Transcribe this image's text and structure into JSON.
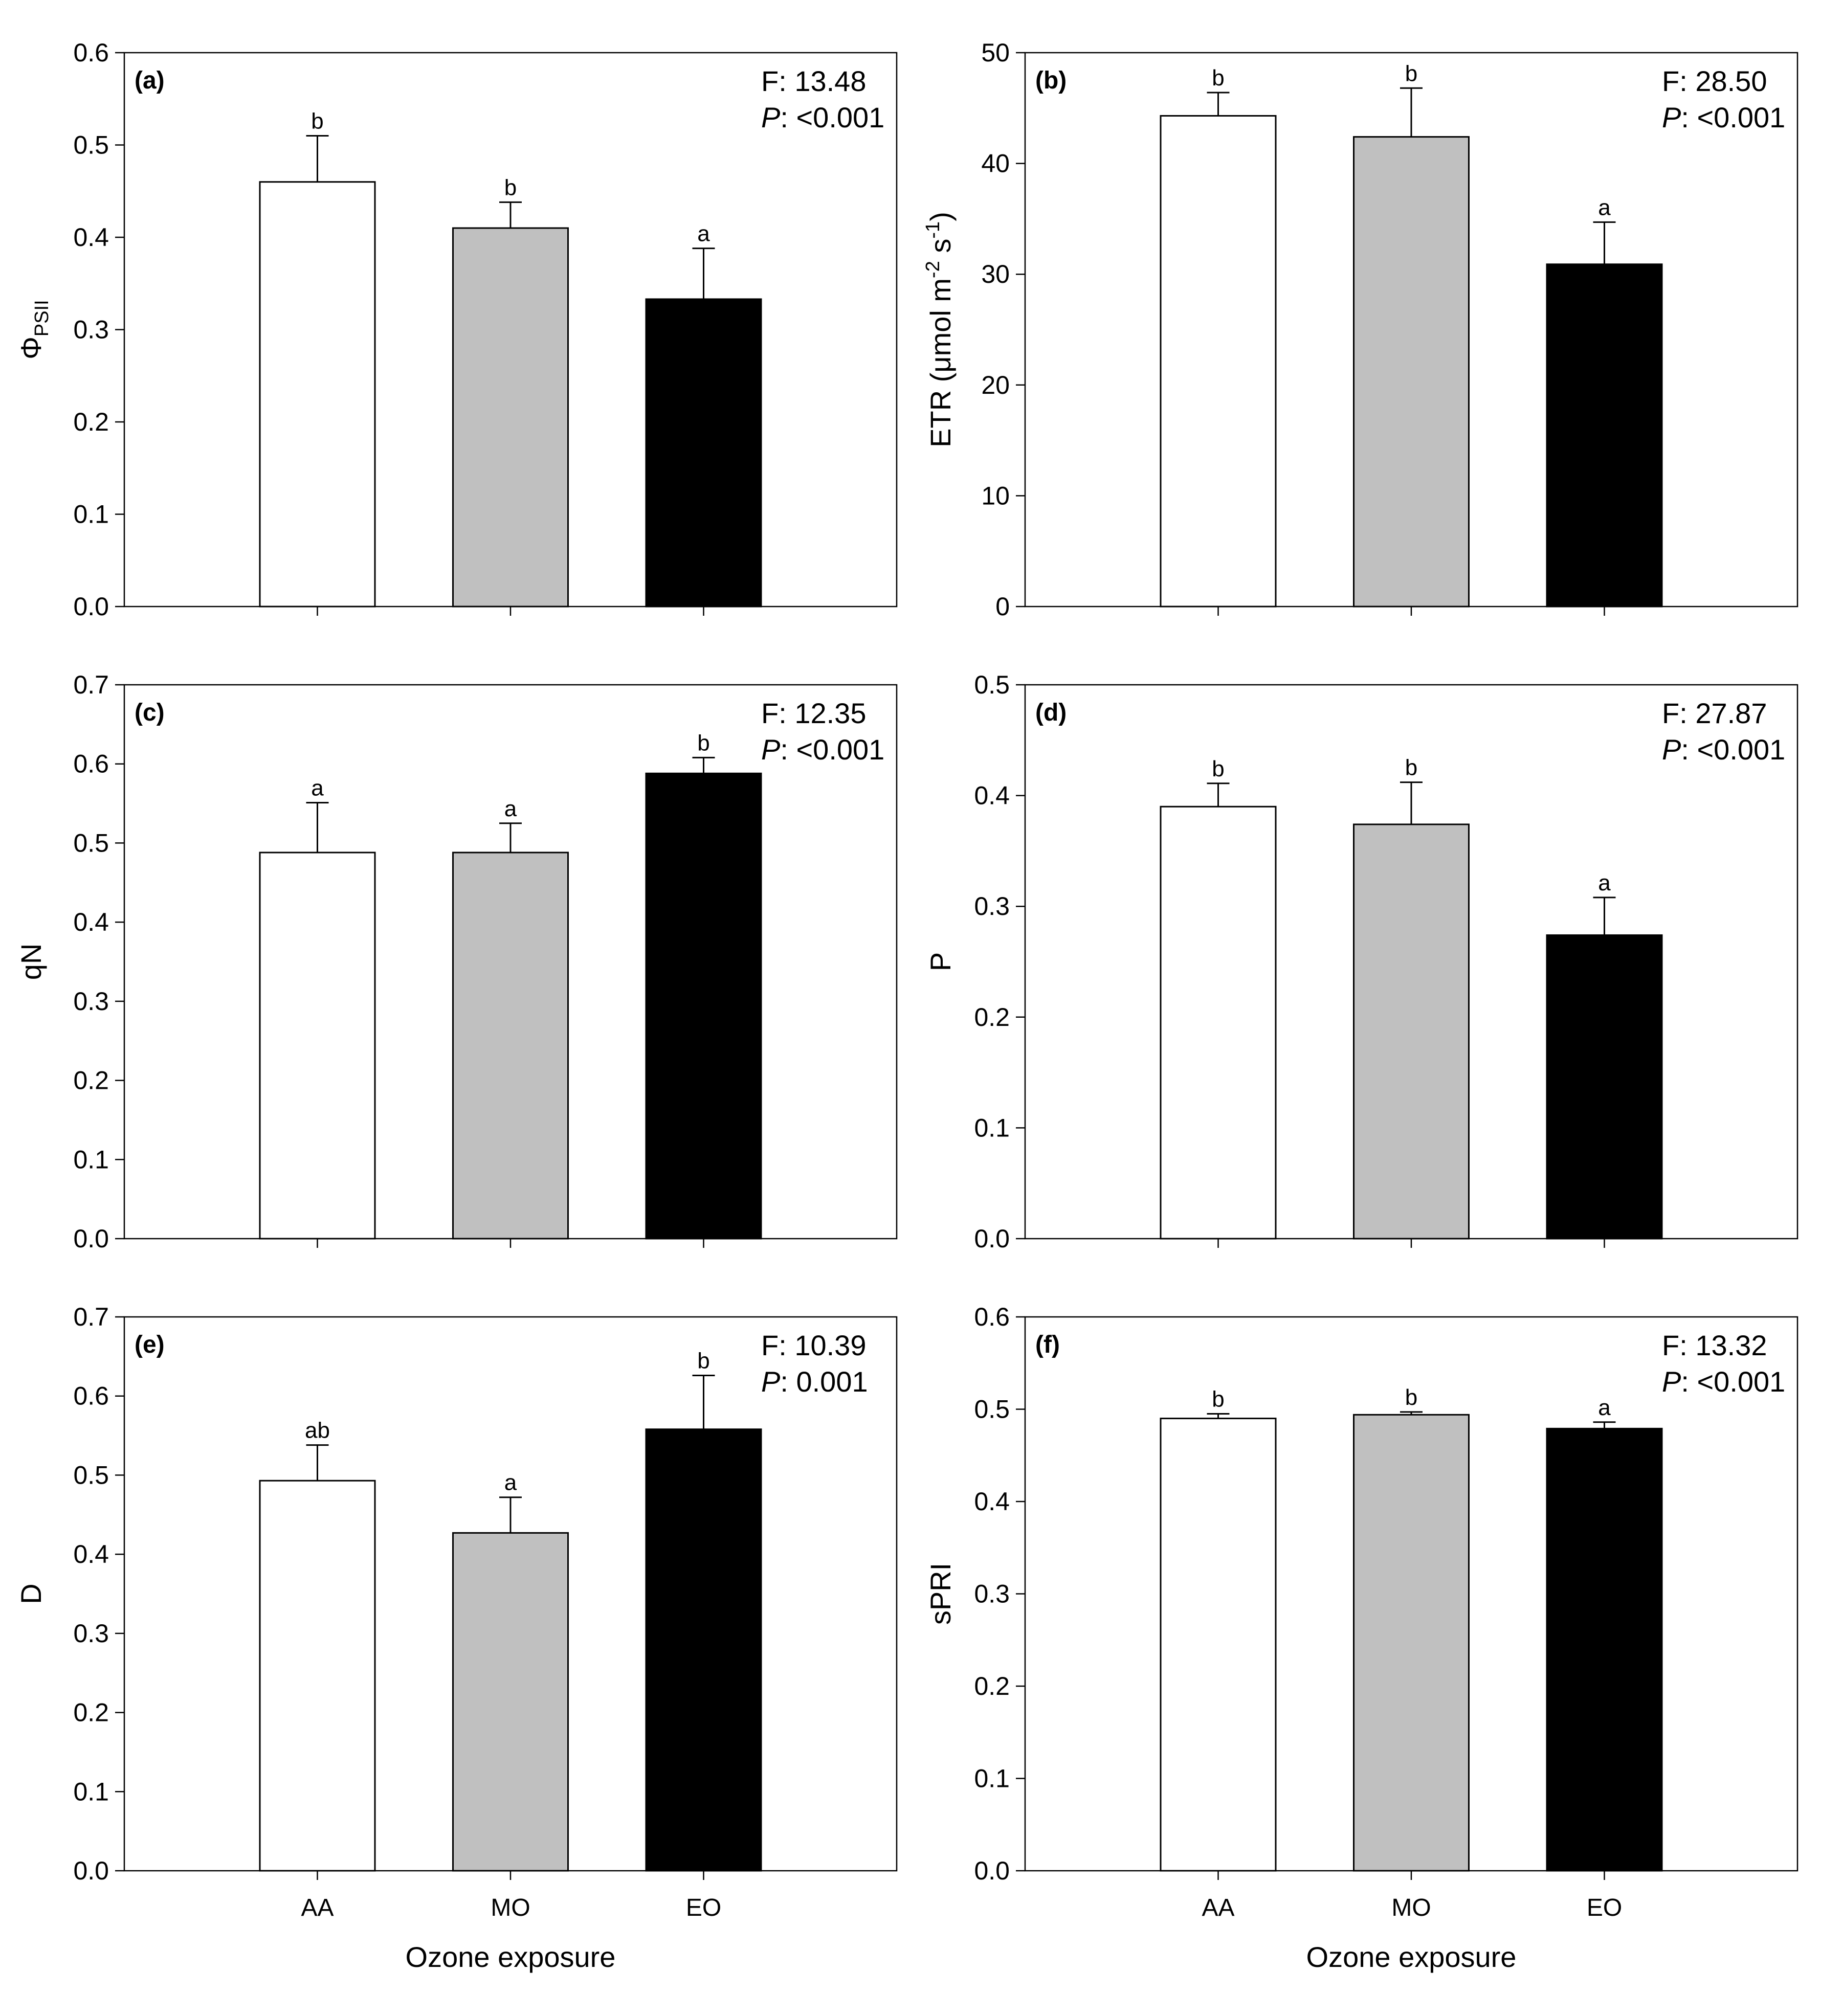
{
  "x_axis": {
    "categories": [
      "AA",
      "MO",
      "EO"
    ],
    "label": "Ozone exposure"
  },
  "colors": {
    "bars": [
      "#ffffff",
      "#c0c0c0",
      "#000000"
    ],
    "axis": "#000000",
    "background": "#ffffff"
  },
  "chart_data": [
    {
      "panel_label": "(a)",
      "type": "bar",
      "values": [
        0.46,
        0.41,
        0.333
      ],
      "errors": [
        0.05,
        0.028,
        0.055
      ],
      "letters": [
        "b",
        "b",
        "a"
      ],
      "ylabel_parts": [
        {
          "text": "Φ"
        },
        {
          "text": "PSII",
          "sub": true
        }
      ],
      "ylim": [
        0,
        0.6
      ],
      "yticks": [
        0,
        0.1,
        0.2,
        0.3,
        0.4,
        0.5,
        0.6
      ],
      "ytick_labels": [
        "0.0",
        "0.1",
        "0.2",
        "0.3",
        "0.4",
        "0.5",
        "0.6"
      ],
      "stat_f": "F: 13.48",
      "stat_p_symbol": "P",
      "stat_p_value": ": <0.001",
      "show_x_labels": false
    },
    {
      "panel_label": "(b)",
      "type": "bar",
      "values": [
        44.3,
        42.4,
        30.9
      ],
      "errors": [
        2.1,
        4.4,
        3.8
      ],
      "letters": [
        "b",
        "b",
        "a"
      ],
      "ylabel_parts": [
        {
          "text": "ETR (μmol m"
        },
        {
          "text": "-2",
          "sup": true
        },
        {
          "text": " s"
        },
        {
          "text": "-1",
          "sup": true
        },
        {
          "text": ")"
        }
      ],
      "ylim": [
        0,
        50
      ],
      "yticks": [
        0,
        10,
        20,
        30,
        40,
        50
      ],
      "ytick_labels": [
        "0",
        "10",
        "20",
        "30",
        "40",
        "50"
      ],
      "stat_f": "F: 28.50",
      "stat_p_symbol": "P",
      "stat_p_value": ": <0.001",
      "show_x_labels": false
    },
    {
      "panel_label": "(c)",
      "type": "bar",
      "values": [
        0.488,
        0.488,
        0.588
      ],
      "errors": [
        0.063,
        0.037,
        0.02
      ],
      "letters": [
        "a",
        "a",
        "b"
      ],
      "ylabel_parts": [
        {
          "text": "qN"
        }
      ],
      "ylim": [
        0,
        0.7
      ],
      "yticks": [
        0,
        0.1,
        0.2,
        0.3,
        0.4,
        0.5,
        0.6,
        0.7
      ],
      "ytick_labels": [
        "0.0",
        "0.1",
        "0.2",
        "0.3",
        "0.4",
        "0.5",
        "0.6",
        "0.7"
      ],
      "stat_f": "F: 12.35",
      "stat_p_symbol": "P",
      "stat_p_value": ": <0.001",
      "show_x_labels": false
    },
    {
      "panel_label": "(d)",
      "type": "bar",
      "values": [
        0.39,
        0.374,
        0.274
      ],
      "errors": [
        0.021,
        0.038,
        0.034
      ],
      "letters": [
        "b",
        "b",
        "a"
      ],
      "ylabel_parts": [
        {
          "text": "P"
        }
      ],
      "ylim": [
        0,
        0.5
      ],
      "yticks": [
        0,
        0.1,
        0.2,
        0.3,
        0.4,
        0.5
      ],
      "ytick_labels": [
        "0.0",
        "0.1",
        "0.2",
        "0.3",
        "0.4",
        "0.5"
      ],
      "stat_f": "F: 27.87",
      "stat_p_symbol": "P",
      "stat_p_value": ": <0.001",
      "show_x_labels": false
    },
    {
      "panel_label": "(e)",
      "type": "bar",
      "values": [
        0.493,
        0.427,
        0.558
      ],
      "errors": [
        0.045,
        0.045,
        0.068
      ],
      "letters": [
        "ab",
        "a",
        "b"
      ],
      "ylabel_parts": [
        {
          "text": "D"
        }
      ],
      "ylim": [
        0,
        0.7
      ],
      "yticks": [
        0,
        0.1,
        0.2,
        0.3,
        0.4,
        0.5,
        0.6,
        0.7
      ],
      "ytick_labels": [
        "0.0",
        "0.1",
        "0.2",
        "0.3",
        "0.4",
        "0.5",
        "0.6",
        "0.7"
      ],
      "stat_f": "F: 10.39",
      "stat_p_symbol": "P",
      "stat_p_value": ": 0.001",
      "show_x_labels": true
    },
    {
      "panel_label": "(f)",
      "type": "bar",
      "values": [
        0.49,
        0.494,
        0.479
      ],
      "errors": [
        0.005,
        0.003,
        0.007
      ],
      "letters": [
        "b",
        "b",
        "a"
      ],
      "ylabel_parts": [
        {
          "text": "sPRI"
        }
      ],
      "ylim": [
        0,
        0.6
      ],
      "yticks": [
        0,
        0.1,
        0.2,
        0.3,
        0.4,
        0.5,
        0.6
      ],
      "ytick_labels": [
        "0.0",
        "0.1",
        "0.2",
        "0.3",
        "0.4",
        "0.5",
        "0.6"
      ],
      "stat_f": "F: 13.32",
      "stat_p_symbol": "P",
      "stat_p_value": ": <0.001",
      "show_x_labels": true
    }
  ]
}
